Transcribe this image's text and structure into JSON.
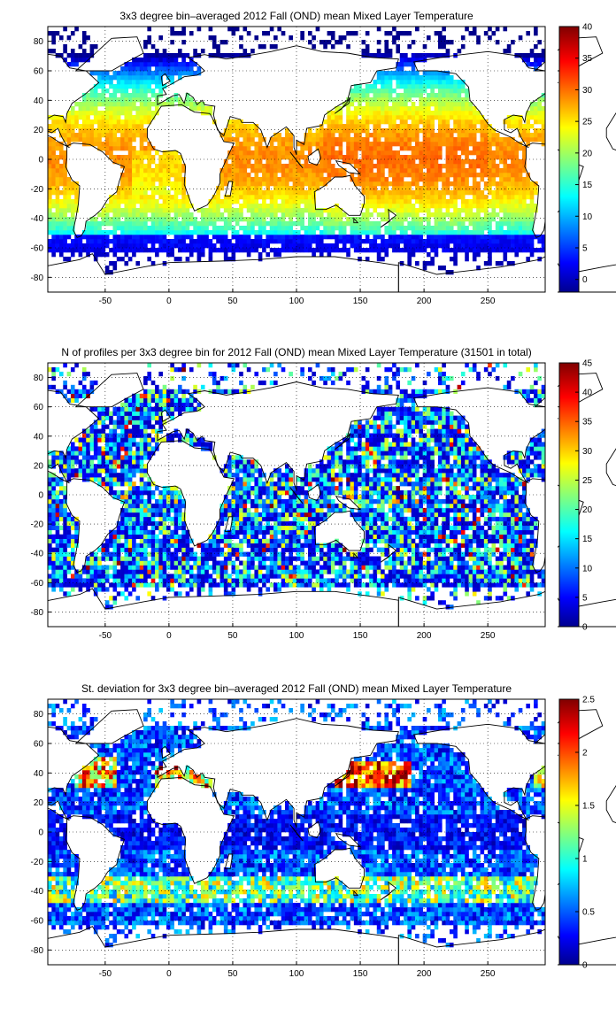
{
  "figure": {
    "lon_ticks": [
      -50,
      0,
      50,
      100,
      150,
      200,
      250
    ],
    "lat_ticks": [
      80,
      60,
      40,
      20,
      0,
      -20,
      -40,
      -60,
      -80
    ],
    "xlim": [
      -95,
      295
    ],
    "ylim": [
      -90,
      90
    ]
  },
  "chart_data": [
    {
      "type": "heatmap",
      "title": "3x3 degree bin–averaged 2012 Fall (OND) mean Mixed Layer Temperature",
      "xlabel": "",
      "ylabel": "",
      "xlim": [
        -95,
        295
      ],
      "ylim": [
        -90,
        90
      ],
      "x_ticks": [
        "-50",
        "0",
        "50",
        "100",
        "150",
        "200",
        "250"
      ],
      "y_ticks": [
        "80",
        "60",
        "40",
        "20",
        "0",
        "-20",
        "-40",
        "-60",
        "-80"
      ],
      "grid": true,
      "colormap": "jet",
      "colorbar": {
        "min": -2,
        "max": 40,
        "ticks": [
          "0",
          "5",
          "10",
          "15",
          "20",
          "25",
          "30",
          "35",
          "40"
        ]
      },
      "bin_size_deg": 3,
      "field": "temperature",
      "approx_values": {
        "equator": 28,
        "lat_40": 15,
        "lat_60_south": 0
      }
    },
    {
      "type": "heatmap",
      "title": "N of profiles per 3x3 degree bin for 2012 Fall (OND) mean Mixed Layer Temperature  (31501 in total)",
      "xlabel": "",
      "ylabel": "",
      "xlim": [
        -95,
        295
      ],
      "ylim": [
        -90,
        90
      ],
      "x_ticks": [
        "-50",
        "0",
        "50",
        "100",
        "150",
        "200",
        "250"
      ],
      "y_ticks": [
        "80",
        "60",
        "40",
        "20",
        "0",
        "-20",
        "-40",
        "-60",
        "-80"
      ],
      "grid": true,
      "colormap": "jet",
      "colorbar": {
        "min": 0,
        "max": 45,
        "ticks": [
          "0",
          "5",
          "10",
          "15",
          "20",
          "25",
          "30",
          "35",
          "40",
          "45"
        ]
      },
      "bin_size_deg": 3,
      "field": "count",
      "total_profiles": 31501,
      "approx_values": {
        "typical": 8,
        "max": 45
      }
    },
    {
      "type": "heatmap",
      "title": "St. deviation for 3x3 degree bin–averaged 2012 Fall (OND) mean Mixed Layer Temperature",
      "xlabel": "",
      "ylabel": "",
      "xlim": [
        -95,
        295
      ],
      "ylim": [
        -90,
        90
      ],
      "x_ticks": [
        "-50",
        "0",
        "50",
        "100",
        "150",
        "200",
        "250"
      ],
      "y_ticks": [
        "80",
        "60",
        "40",
        "20",
        "0",
        "-20",
        "-40",
        "-60",
        "-80"
      ],
      "grid": true,
      "colormap": "jet",
      "colorbar": {
        "min": 0,
        "max": 2.5,
        "ticks": [
          "0",
          "0.5",
          "1",
          "1.5",
          "2",
          "2.5"
        ]
      },
      "bin_size_deg": 3,
      "field": "stddev",
      "approx_values": {
        "tropics": 0.3,
        "western_boundary_currents": 2.5
      }
    }
  ]
}
